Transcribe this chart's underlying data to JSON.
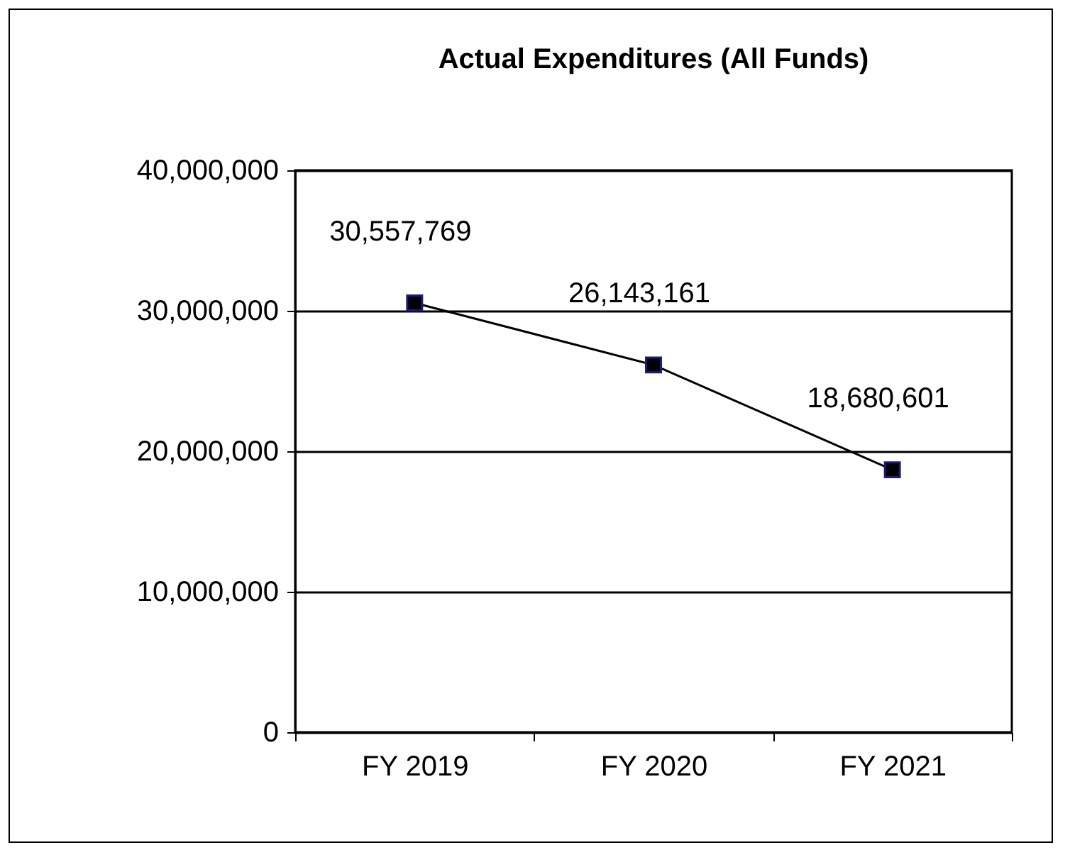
{
  "chart_data": {
    "type": "line",
    "title": "Actual Expenditures (All Funds)",
    "categories": [
      "FY 2019",
      "FY 2020",
      "FY 2021"
    ],
    "series": [
      {
        "color": "#000000",
        "values": [
          30557769,
          26143161,
          18680601
        ],
        "value_labels": [
          "30,557,769",
          "26,143,161",
          "18,680,601"
        ]
      }
    ],
    "ylim": [
      0,
      40000000
    ],
    "yticks": [
      0,
      {
        "value": 10000000,
        "label": "10,000,000"
      },
      {
        "value": 20000000,
        "label": "20,000,000"
      },
      {
        "value": 30000000,
        "label": "30,000,000"
      },
      {
        "value": 40000000,
        "label": "40,000,000"
      }
    ],
    "grid": "y",
    "marker": "square",
    "line_style": "solid"
  }
}
